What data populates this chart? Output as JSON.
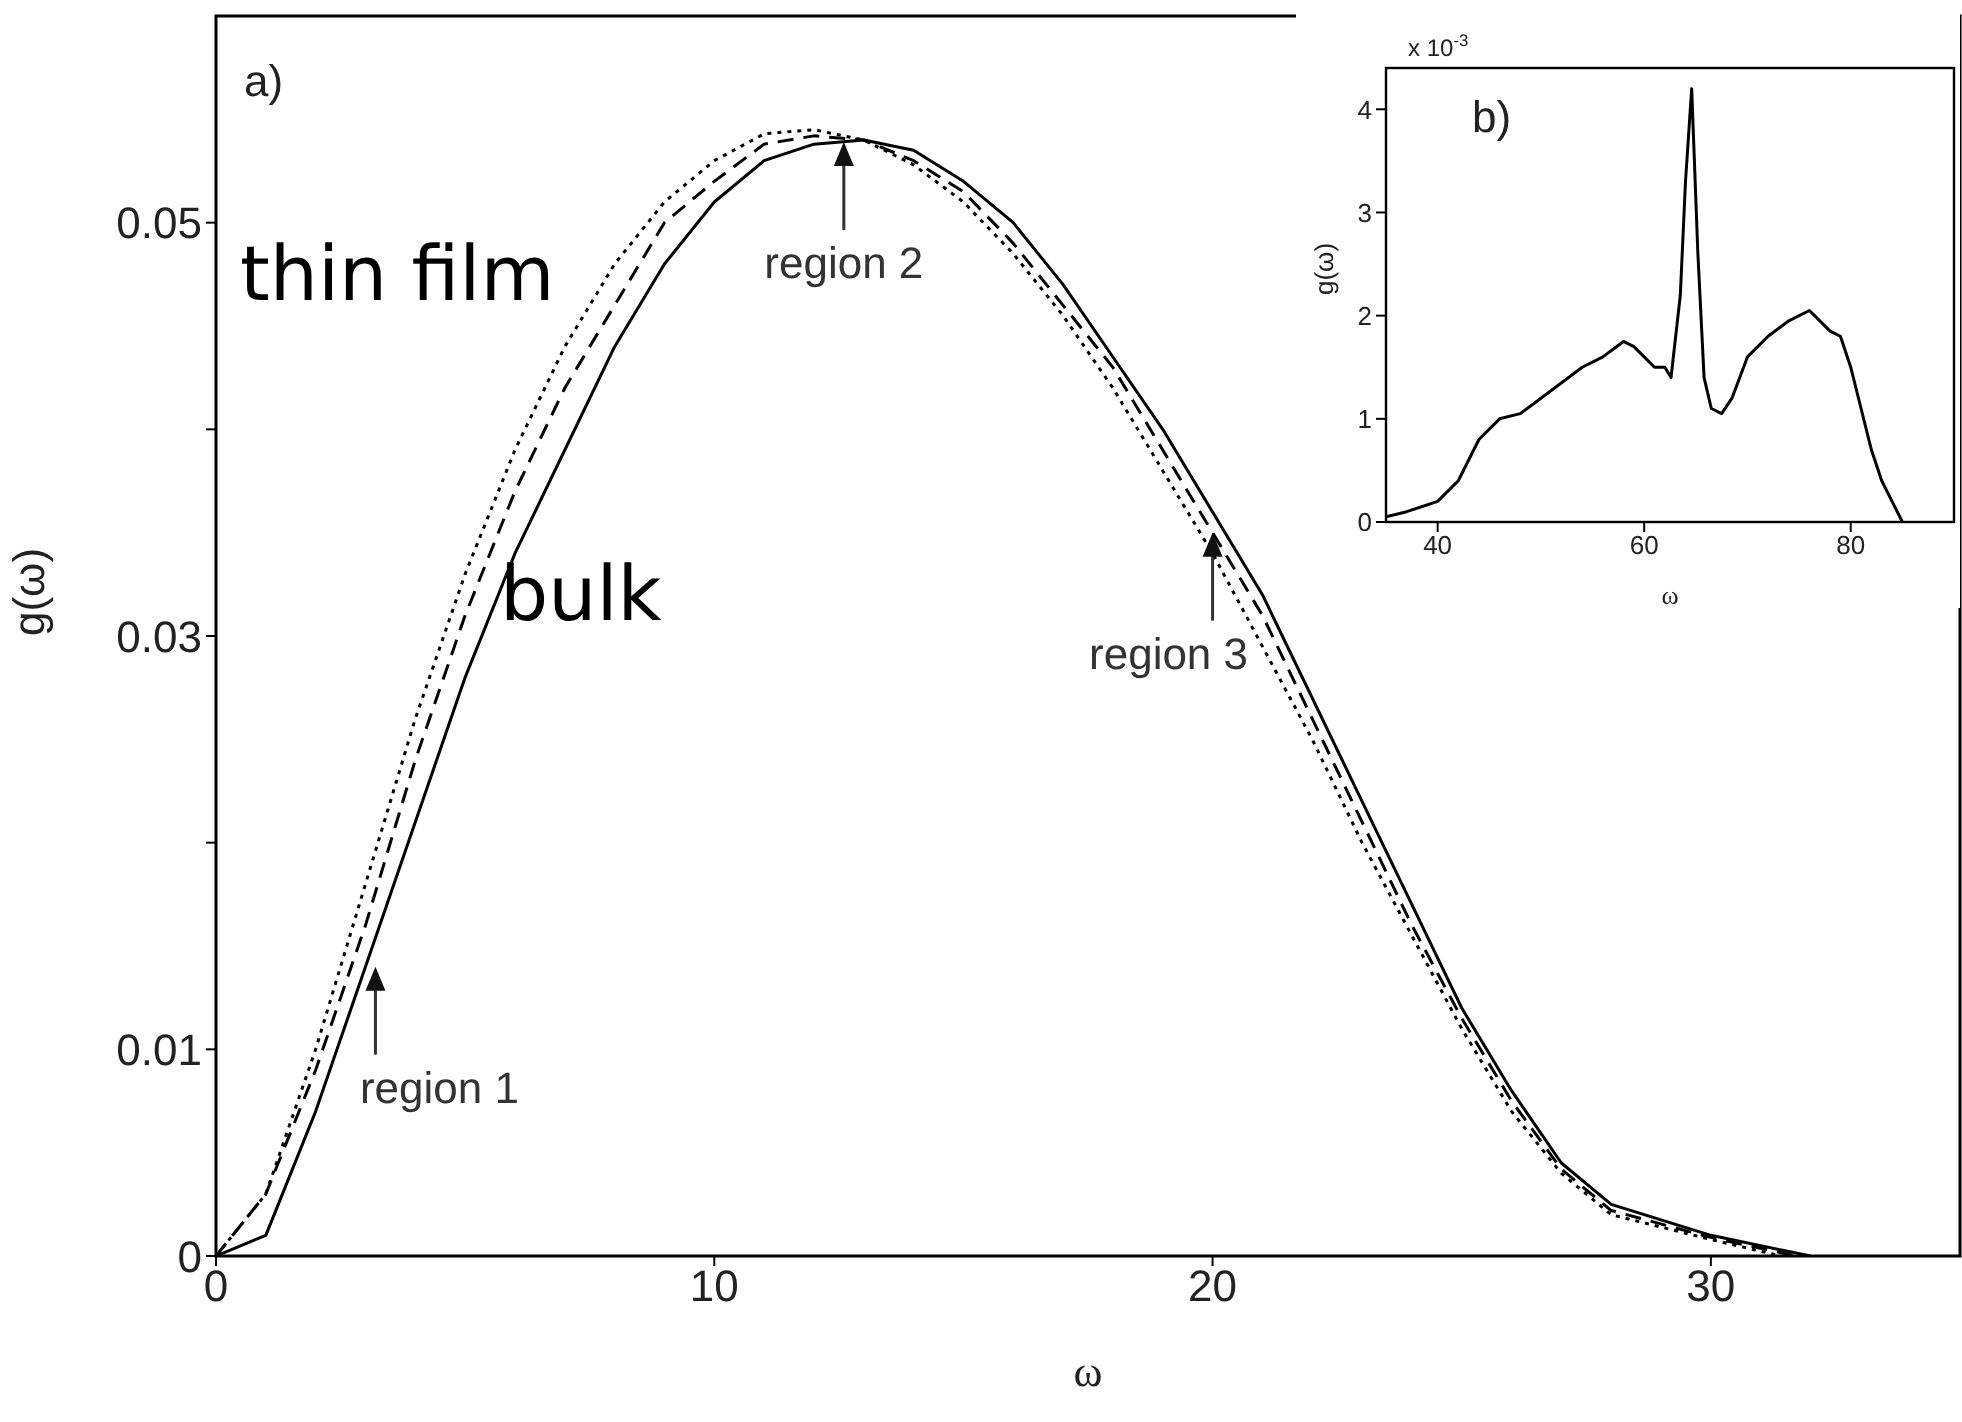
{
  "chart_data": [
    {
      "type": "line",
      "xlabel": "ω",
      "ylabel": "g(ω)",
      "x": [
        0,
        1,
        2,
        3,
        4,
        5,
        6,
        7,
        8,
        9,
        10,
        11,
        12,
        13,
        14,
        15,
        16,
        17,
        18,
        19,
        20,
        21,
        22,
        23,
        24,
        25,
        26,
        27,
        28,
        30,
        32
      ],
      "series": [
        {
          "name": "bulk",
          "color": "#000000",
          "line_style": "solid",
          "values": [
            0,
            0.001,
            0.007,
            0.014,
            0.021,
            0.028,
            0.034,
            0.039,
            0.044,
            0.048,
            0.051,
            0.053,
            0.0538,
            0.054,
            0.0535,
            0.052,
            0.05,
            0.047,
            0.0435,
            0.04,
            0.036,
            0.032,
            0.027,
            0.022,
            0.017,
            0.012,
            0.008,
            0.0045,
            0.0025,
            0.001,
            0
          ]
        },
        {
          "color": "#000000",
          "line_style": "dashed",
          "x": [
            0,
            1,
            2,
            3,
            4,
            5,
            6,
            7,
            8,
            9,
            10,
            11,
            12,
            13,
            14,
            15,
            16,
            17,
            18,
            19,
            20,
            21,
            22,
            23,
            24,
            25,
            26,
            27,
            28,
            30,
            31.7
          ],
          "values": [
            0,
            0.003,
            0.009,
            0.016,
            0.024,
            0.031,
            0.037,
            0.042,
            0.046,
            0.05,
            0.052,
            0.0538,
            0.0542,
            0.054,
            0.053,
            0.0515,
            0.049,
            0.046,
            0.043,
            0.039,
            0.035,
            0.031,
            0.026,
            0.021,
            0.016,
            0.0115,
            0.0075,
            0.0042,
            0.0022,
            0.0009,
            0
          ]
        },
        {
          "name": "thin film",
          "color": "#000000",
          "line_style": "dotted",
          "x": [
            0,
            1,
            2,
            3,
            4,
            5,
            6,
            7,
            8,
            9,
            10,
            11,
            12,
            13,
            14,
            15,
            16,
            17,
            18,
            19,
            20,
            21,
            22,
            23,
            24,
            25,
            26,
            27,
            28,
            30,
            31.4
          ],
          "values": [
            0,
            0.003,
            0.01,
            0.018,
            0.026,
            0.033,
            0.039,
            0.044,
            0.048,
            0.051,
            0.053,
            0.0543,
            0.0545,
            0.054,
            0.0528,
            0.051,
            0.0485,
            0.0455,
            0.042,
            0.038,
            0.034,
            0.0295,
            0.025,
            0.02,
            0.0155,
            0.011,
            0.007,
            0.004,
            0.002,
            0.0008,
            0
          ]
        }
      ],
      "xlim": [
        0,
        35
      ],
      "xticks": [
        0,
        10,
        20,
        30
      ],
      "ylim": [
        0,
        0.06
      ],
      "yticks": [
        0,
        0.01,
        {
          "value": 0.02,
          "label": null
        },
        0.03,
        {
          "value": 0.04,
          "label": null
        },
        0.05
      ],
      "annotations": [
        "a)",
        {
          "text": "region 1",
          "x": 3.2,
          "y": 0.014
        },
        {
          "text": "region 2",
          "x": 12.6,
          "y": 0.0539
        },
        {
          "text": "region 3",
          "x": 20,
          "y": 0.035
        }
      ],
      "grid": false,
      "legend": false,
      "marker": "none"
    },
    {
      "type": "line",
      "xlabel": "ω",
      "ylabel": "g(ω)",
      "x": [
        35,
        37,
        40,
        42,
        44,
        46,
        48,
        50,
        52,
        54,
        56,
        58,
        59,
        60,
        61,
        62,
        62.6,
        63.5,
        64,
        64.6,
        65.2,
        65.8,
        66.5,
        67.5,
        68.5,
        70,
        72,
        74,
        76,
        78,
        79,
        80,
        81,
        82,
        83,
        84,
        85
      ],
      "series": [
        {
          "color": "#000000",
          "line_style": "solid",
          "values": [
            0.05,
            0.1,
            0.2,
            0.4,
            0.8,
            1.0,
            1.05,
            1.2,
            1.35,
            1.5,
            1.6,
            1.75,
            1.7,
            1.6,
            1.5,
            1.5,
            1.4,
            2.2,
            3.3,
            4.2,
            2.6,
            1.4,
            1.1,
            1.05,
            1.2,
            1.6,
            1.8,
            1.95,
            2.05,
            1.85,
            1.8,
            1.5,
            1.1,
            0.7,
            0.4,
            0.2,
            0
          ]
        }
      ],
      "xlim": [
        35,
        90
      ],
      "xticks": [
        40,
        60,
        80
      ],
      "ylim": [
        0,
        4.4
      ],
      "yticks": [
        0,
        1,
        2,
        3,
        4
      ],
      "annotations": [
        "b)",
        "x 10$^{-3}$"
      ],
      "grid": false,
      "legend": false,
      "marker": "none"
    }
  ]
}
